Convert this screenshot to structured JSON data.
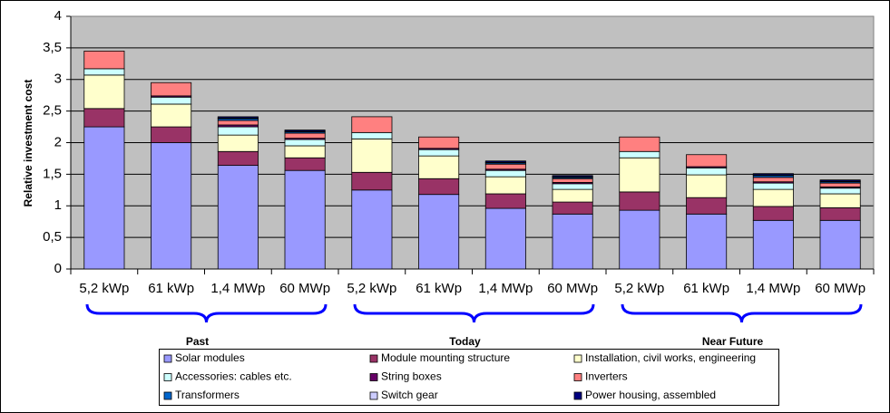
{
  "chart_data": {
    "type": "stacked_bar",
    "y_label": "Relative investment cost",
    "categories": [
      "5,2 kWp",
      "61 kWp",
      "1,4 MWp",
      "60 MWp",
      "5,2 kWp",
      "61 kWp",
      "1,4 MWp",
      "60 MWp",
      "5,2 kWp",
      "61 kWp",
      "1,4 MWp",
      "60 MWp"
    ],
    "groups": [
      "Past",
      "Today",
      "Near Future"
    ],
    "ylim": [
      0,
      4
    ],
    "yticks": [
      0,
      {
        "value": 0.5,
        "label": "0,5"
      },
      1,
      {
        "value": 1.5,
        "label": "1,5"
      },
      2,
      {
        "value": 2.5,
        "label": "2,5"
      },
      3,
      {
        "value": 3.5,
        "label": "3,5"
      },
      4
    ],
    "grid": true,
    "series": [
      {
        "name": "Solar modules",
        "color": "#9999ff",
        "values": [
          2.25,
          2.0,
          1.64,
          1.56,
          1.25,
          1.18,
          0.96,
          0.87,
          0.93,
          0.87,
          0.77,
          0.77
        ]
      },
      {
        "name": "Module mounting structure",
        "color": "#993366",
        "values": [
          0.29,
          0.25,
          0.22,
          0.2,
          0.28,
          0.25,
          0.23,
          0.19,
          0.29,
          0.26,
          0.22,
          0.2
        ]
      },
      {
        "name": "Installation, civil works, engineering",
        "color": "#ffffcc",
        "values": [
          0.53,
          0.36,
          0.26,
          0.19,
          0.53,
          0.36,
          0.27,
          0.2,
          0.54,
          0.36,
          0.27,
          0.22
        ]
      },
      {
        "name": "Accessories: cables etc.",
        "color": "#ccffff",
        "values": [
          0.1,
          0.11,
          0.13,
          0.1,
          0.1,
          0.1,
          0.1,
          0.09,
          0.1,
          0.11,
          0.1,
          0.09
        ]
      },
      {
        "name": "String boxes",
        "color": "#660066",
        "values": [
          0,
          0.02,
          0.03,
          0.02,
          0,
          0.02,
          0.02,
          0.02,
          0,
          0.02,
          0.02,
          0.02
        ]
      },
      {
        "name": "Inverters",
        "color": "#ff8080",
        "values": [
          0.28,
          0.21,
          0.07,
          0.08,
          0.25,
          0.18,
          0.08,
          0.06,
          0.23,
          0.19,
          0.07,
          0.06
        ]
      },
      {
        "name": "Transformers",
        "color": "#0066cc",
        "values": [
          0,
          0,
          0.03,
          0.02,
          0,
          0,
          0.02,
          0.02,
          0,
          0,
          0.03,
          0.02
        ]
      },
      {
        "name": "Switch gear",
        "color": "#ccccff",
        "values": [
          0,
          0,
          0.01,
          0.01,
          0,
          0,
          0.01,
          0.01,
          0,
          0,
          0.01,
          0.01
        ]
      },
      {
        "name": "Power housing, assembled",
        "color": "#000080",
        "values": [
          0,
          0,
          0.02,
          0.02,
          0,
          0,
          0.02,
          0.02,
          0,
          0,
          0.02,
          0.02
        ]
      }
    ]
  }
}
